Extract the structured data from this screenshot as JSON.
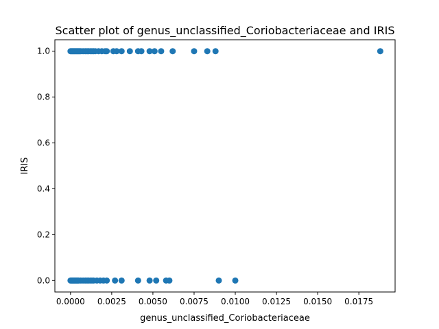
{
  "chart_data": {
    "type": "scatter",
    "title": "Scatter plot of genus_unclassified_Coriobacteriaceae and IRIS",
    "xlabel": "genus_unclassified_Coriobacteriaceae",
    "ylabel": "IRIS",
    "xlim": [
      -0.00095,
      0.0197
    ],
    "ylim": [
      -0.05,
      1.05
    ],
    "xticks": [
      "0.0000",
      "0.0025",
      "0.0050",
      "0.0075",
      "0.0100",
      "0.0125",
      "0.0150",
      "0.0175"
    ],
    "xtick_values": [
      0.0,
      0.0025,
      0.005,
      0.0075,
      0.01,
      0.0125,
      0.015,
      0.0175
    ],
    "yticks": [
      "0.0",
      "0.2",
      "0.4",
      "0.6",
      "0.8",
      "1.0"
    ],
    "ytick_values": [
      0.0,
      0.2,
      0.4,
      0.6,
      0.8,
      1.0
    ],
    "grid": false,
    "marker_color": "#1f77b4",
    "series": [
      {
        "points": [
          [
            0.0,
            1
          ],
          [
            5e-05,
            1
          ],
          [
            0.0001,
            1
          ],
          [
            0.00015,
            1
          ],
          [
            0.0002,
            1
          ],
          [
            0.00025,
            1
          ],
          [
            0.0003,
            1
          ],
          [
            0.00035,
            1
          ],
          [
            0.0004,
            1
          ],
          [
            0.00045,
            1
          ],
          [
            0.0005,
            1
          ],
          [
            0.00055,
            1
          ],
          [
            0.0006,
            1
          ],
          [
            0.0007,
            1
          ],
          [
            0.0008,
            1
          ],
          [
            0.0009,
            1
          ],
          [
            0.001,
            1
          ],
          [
            0.0011,
            1
          ],
          [
            0.0012,
            1
          ],
          [
            0.0013,
            1
          ],
          [
            0.0014,
            1
          ],
          [
            0.0015,
            1
          ],
          [
            0.0017,
            1
          ],
          [
            0.0019,
            1
          ],
          [
            0.0021,
            1
          ],
          [
            0.0022,
            1
          ],
          [
            0.0026,
            1
          ],
          [
            0.0028,
            1
          ],
          [
            0.0031,
            1
          ],
          [
            0.0036,
            1
          ],
          [
            0.0041,
            1
          ],
          [
            0.0043,
            1
          ],
          [
            0.0048,
            1
          ],
          [
            0.0051,
            1
          ],
          [
            0.0055,
            1
          ],
          [
            0.0062,
            1
          ],
          [
            0.0075,
            1
          ],
          [
            0.0083,
            1
          ],
          [
            0.0088,
            1
          ],
          [
            0.0188,
            1
          ],
          [
            0.0,
            0
          ],
          [
            5e-05,
            0
          ],
          [
            0.0001,
            0
          ],
          [
            0.00015,
            0
          ],
          [
            0.0002,
            0
          ],
          [
            0.00025,
            0
          ],
          [
            0.0003,
            0
          ],
          [
            0.00035,
            0
          ],
          [
            0.0004,
            0
          ],
          [
            0.00045,
            0
          ],
          [
            0.0005,
            0
          ],
          [
            0.0006,
            0
          ],
          [
            0.0007,
            0
          ],
          [
            0.0008,
            0
          ],
          [
            0.0009,
            0
          ],
          [
            0.001,
            0
          ],
          [
            0.0011,
            0
          ],
          [
            0.0012,
            0
          ],
          [
            0.0013,
            0
          ],
          [
            0.0014,
            0
          ],
          [
            0.0016,
            0
          ],
          [
            0.0018,
            0
          ],
          [
            0.002,
            0
          ],
          [
            0.0022,
            0
          ],
          [
            0.0027,
            0
          ],
          [
            0.0031,
            0
          ],
          [
            0.0041,
            0
          ],
          [
            0.0048,
            0
          ],
          [
            0.0052,
            0
          ],
          [
            0.0058,
            0
          ],
          [
            0.006,
            0
          ],
          [
            0.009,
            0
          ],
          [
            0.01,
            0
          ]
        ]
      }
    ]
  }
}
